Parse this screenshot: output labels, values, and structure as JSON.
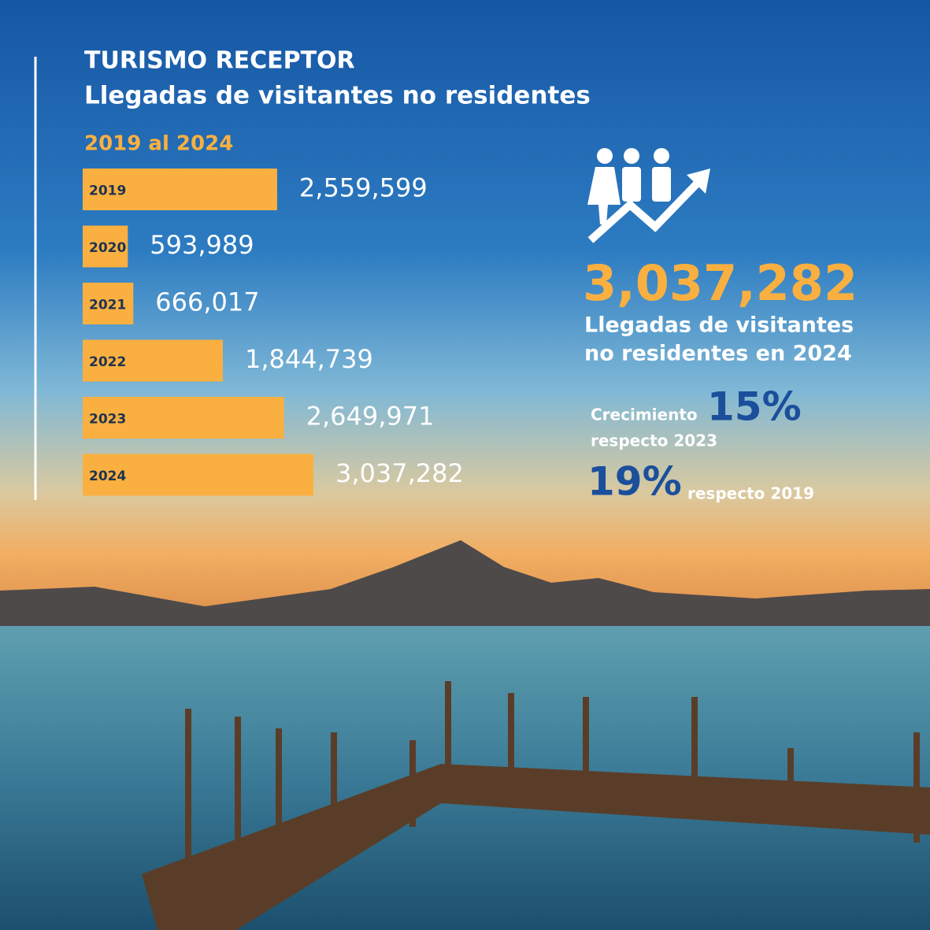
{
  "chart_data": {
    "type": "bar",
    "orientation": "horizontal",
    "title": "TURISMO RECEPTOR",
    "subtitle": "Llegadas de visitantes no residentes",
    "period": "2019 al 2024",
    "categories": [
      "2019",
      "2020",
      "2021",
      "2022",
      "2023",
      "2024"
    ],
    "values": [
      2559599,
      593989,
      666017,
      1844739,
      2649971,
      3037282
    ],
    "value_labels": [
      "2,559,599",
      "593,989",
      "666,017",
      "1,844,739",
      "2,649,971",
      "3,037,282"
    ],
    "color": "#f9b040"
  },
  "highlight": {
    "total": "3,037,282",
    "caption": [
      "Llegadas de visitantes",
      "no residentes en 2024"
    ],
    "growth_prefix": "Crecimiento",
    "growth_2023": "15%",
    "growth_2023_suffix": "respecto 2023",
    "growth_2019": "19%",
    "growth_2019_suffix": "respecto 2019"
  }
}
